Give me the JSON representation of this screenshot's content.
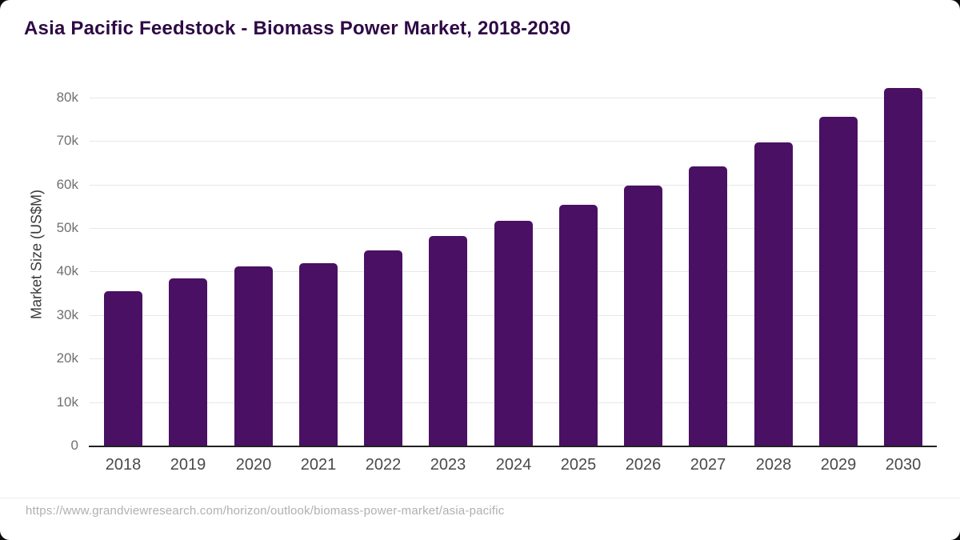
{
  "page": {
    "outer_background": "#0a0a0d",
    "card_background": "#ffffff"
  },
  "header": {
    "title": "Asia Pacific Feedstock - Biomass Power Market, 2018-2030",
    "title_color": "#2e0a45"
  },
  "chart_data": {
    "type": "bar",
    "title": "Asia Pacific Feedstock - Biomass Power Market, 2018-2030",
    "xlabel": "",
    "ylabel": "Market Size (US$M)",
    "categories": [
      "2018",
      "2019",
      "2020",
      "2021",
      "2022",
      "2023",
      "2024",
      "2025",
      "2026",
      "2027",
      "2028",
      "2029",
      "2030"
    ],
    "values": [
      35400,
      38500,
      41100,
      42000,
      44900,
      48100,
      51600,
      55400,
      59800,
      64200,
      69600,
      75500,
      82200
    ],
    "ylim": [
      0,
      84000
    ],
    "ytick_labels": [
      "0",
      "10k",
      "20k",
      "30k",
      "40k",
      "50k",
      "60k",
      "70k",
      "80k"
    ],
    "ytick_values": [
      0,
      10000,
      20000,
      30000,
      40000,
      50000,
      60000,
      70000,
      80000
    ],
    "bar_color": "#4a1063",
    "grid": true,
    "gridline_color": "#e7e7e7",
    "axis_color": "#212121",
    "legend": false
  },
  "footer": {
    "source_url": "https://www.grandviewresearch.com/horizon/outlook/biomass-power-market/asia-pacific"
  }
}
